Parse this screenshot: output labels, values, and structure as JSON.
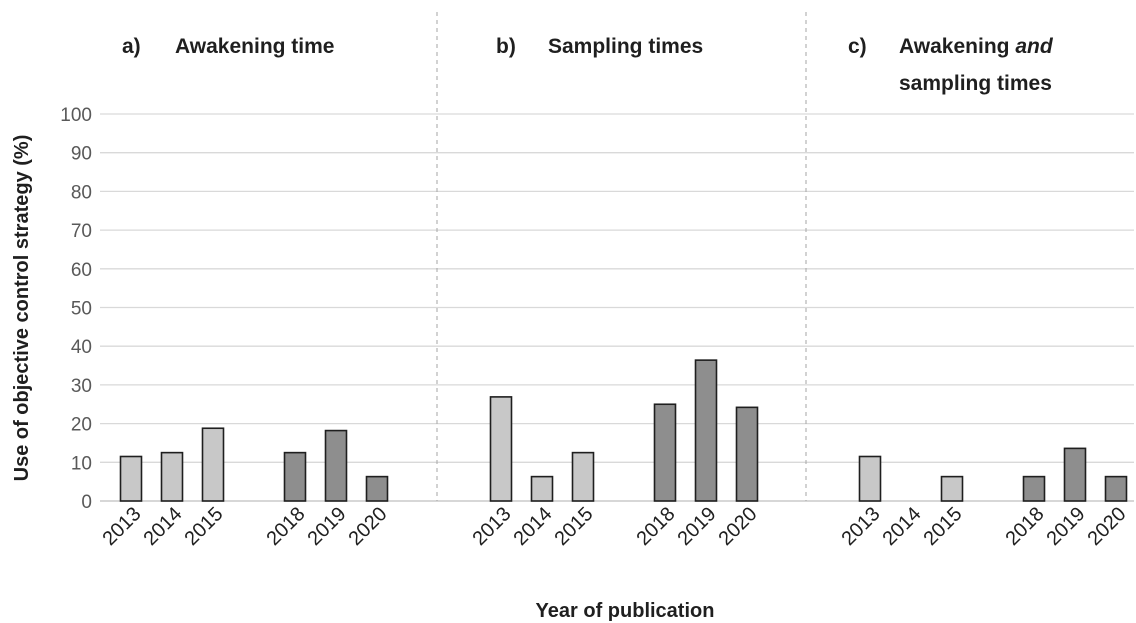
{
  "chart_data": {
    "type": "bar",
    "ylabel": "Use of objective control strategy (%)",
    "xlabel": "Year of publication",
    "ylim": [
      0,
      100
    ],
    "yticks": [
      "0",
      "10",
      "20",
      "30",
      "40",
      "50",
      "60",
      "70",
      "80",
      "90",
      "100"
    ],
    "grid": true,
    "colors": {
      "early_years": "#c8c8c8",
      "late_years": "#8e8e8e"
    },
    "panels": [
      {
        "letter": "a)",
        "title_lines": [
          [
            {
              "text": "Awakening time",
              "italic": false
            }
          ]
        ],
        "categories": [
          "2013",
          "2014",
          "2015",
          "2018",
          "2019",
          "2020"
        ],
        "values": [
          11.5,
          12.5,
          18.8,
          12.5,
          18.2,
          6.3
        ]
      },
      {
        "letter": "b)",
        "title_lines": [
          [
            {
              "text": "Sampling times",
              "italic": false
            }
          ]
        ],
        "categories": [
          "2013",
          "2014",
          "2015",
          "2018",
          "2019",
          "2020"
        ],
        "values": [
          26.9,
          6.3,
          12.5,
          25.0,
          36.4,
          24.2
        ]
      },
      {
        "letter": "c)",
        "title_lines": [
          [
            {
              "text": "Awakening ",
              "italic": false
            },
            {
              "text": "and",
              "italic": true
            }
          ],
          [
            {
              "text": "sampling times",
              "italic": false
            }
          ]
        ],
        "categories": [
          "2013",
          "2014",
          "2015",
          "2018",
          "2019",
          "2020"
        ],
        "values": [
          11.5,
          0,
          6.3,
          6.3,
          13.6,
          6.3
        ]
      }
    ]
  }
}
